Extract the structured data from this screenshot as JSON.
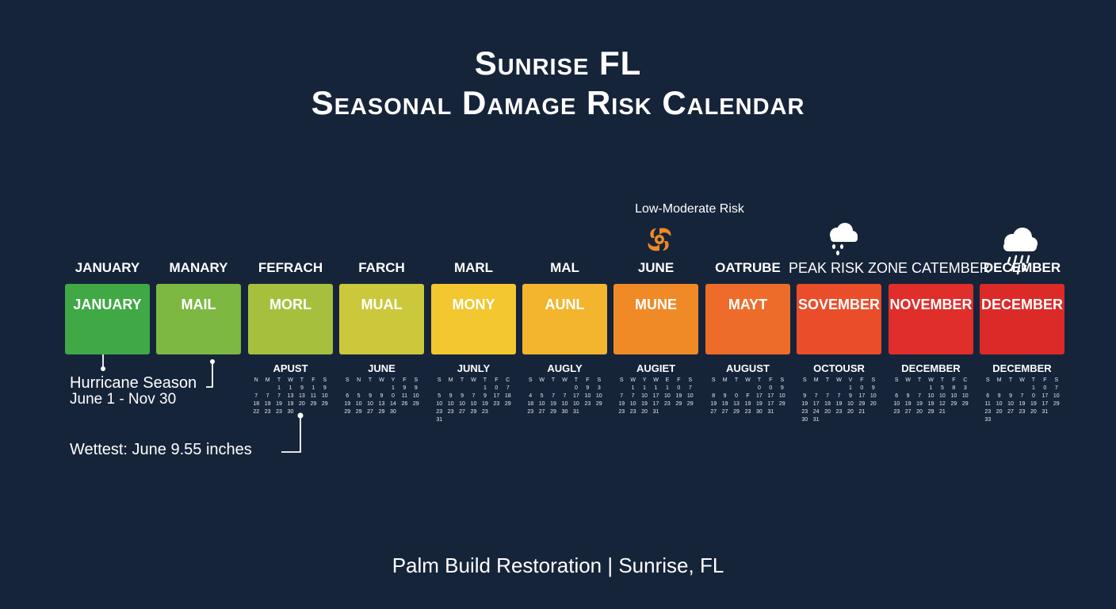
{
  "title": {
    "line1": "Sunrise FL",
    "line2": "Seasonal Damage Risk Calendar"
  },
  "colors": {
    "background": "#16243a",
    "hurricane_icon": "#ef8a26"
  },
  "risk_label": "Low-Moderate Risk",
  "icons": [
    "hurricane-icon",
    "cloud-rain-icon",
    "cloud-heavy-rain-icon"
  ],
  "months": [
    {
      "top": "JANUARY",
      "tile": "JANUARY",
      "color": "#40a845"
    },
    {
      "top": "MANARY",
      "tile": "MAIL",
      "color": "#7db843"
    },
    {
      "top": "FEFRACH",
      "tile": "MORL",
      "color": "#a6c03e"
    },
    {
      "top": "FARCH",
      "tile": "MUAL",
      "color": "#cbc83b"
    },
    {
      "top": "MARL",
      "tile": "MONY",
      "color": "#f2c72f"
    },
    {
      "top": "MAL",
      "tile": "AUNL",
      "color": "#f3b52e"
    },
    {
      "top": "JUNE",
      "tile": "MUNE",
      "color": "#ef8a26"
    },
    {
      "top": "OATRUBE",
      "tile": "MAYT",
      "color": "#ee6c29"
    },
    {
      "top": "PEAK RISK ZONE CATEMBER",
      "tile": "SOVEMBER",
      "color": "#ea4d2a"
    },
    {
      "top": "",
      "tile": "NOVEMBER",
      "color": "#e02e2b"
    },
    {
      "top": "DECEMBER",
      "tile": "DECEMBER",
      "color": "#dc2a29"
    }
  ],
  "calendars": [
    {
      "name": "APUST",
      "rows": [
        [
          "N",
          "M",
          "T",
          "W",
          "T",
          "F",
          "S"
        ],
        [
          "",
          "",
          "1",
          "1",
          "9",
          "1",
          "9"
        ],
        [
          "7",
          "7",
          "7",
          "13",
          "13",
          "11",
          "10"
        ],
        [
          "18",
          "19",
          "19",
          "19",
          "20",
          "29",
          "29"
        ],
        [
          "22",
          "23",
          "23",
          "30",
          "",
          "",
          ""
        ]
      ]
    },
    {
      "name": "JUNE",
      "rows": [
        [
          "S",
          "N",
          "T",
          "W",
          "Y",
          "F",
          "S"
        ],
        [
          "",
          "",
          "",
          "",
          "1",
          "9",
          "9"
        ],
        [
          "6",
          "5",
          "9",
          "9",
          "0",
          "11",
          "10"
        ],
        [
          "19",
          "10",
          "10",
          "13",
          "14",
          "26",
          "29"
        ],
        [
          "29",
          "29",
          "27",
          "29",
          "30",
          "",
          ""
        ]
      ]
    },
    {
      "name": "JUNLY",
      "rows": [
        [
          "S",
          "M",
          "T",
          "W",
          "T",
          "F",
          "C"
        ],
        [
          "",
          "",
          "",
          "",
          "1",
          "0",
          "7"
        ],
        [
          "5",
          "9",
          "9",
          "7",
          "9",
          "17",
          "18"
        ],
        [
          "10",
          "10",
          "10",
          "10",
          "19",
          "23",
          "29"
        ],
        [
          "23",
          "23",
          "27",
          "29",
          "23",
          "",
          ""
        ],
        [
          "31",
          "",
          "",
          "",
          "",
          "",
          ""
        ]
      ]
    },
    {
      "name": "AUGLY",
      "rows": [
        [
          "S",
          "W",
          "T",
          "W",
          "T",
          "F",
          "S"
        ],
        [
          "",
          "",
          "",
          "",
          "0",
          "9",
          "3"
        ],
        [
          "4",
          "5",
          "7",
          "7",
          "17",
          "10",
          "10"
        ],
        [
          "18",
          "10",
          "19",
          "10",
          "10",
          "23",
          "29"
        ],
        [
          "23",
          "27",
          "29",
          "30",
          "31",
          "",
          ""
        ]
      ]
    },
    {
      "name": "AUGIET",
      "rows": [
        [
          "S",
          "W",
          "Y",
          "W",
          "E",
          "F",
          "S"
        ],
        [
          "",
          "1",
          "1",
          "1",
          "1",
          "0",
          "7"
        ],
        [
          "7",
          "7",
          "10",
          "17",
          "10",
          "19",
          "10"
        ],
        [
          "19",
          "10",
          "19",
          "17",
          "23",
          "29",
          "29"
        ],
        [
          "23",
          "23",
          "20",
          "31",
          "",
          "",
          ""
        ]
      ]
    },
    {
      "name": "AUGUST",
      "rows": [
        [
          "S",
          "M",
          "T",
          "W",
          "T",
          "F",
          "S"
        ],
        [
          "",
          "",
          "",
          "",
          "0",
          "0",
          "9"
        ],
        [
          "8",
          "9",
          "0",
          "F",
          "17",
          "17",
          "10"
        ],
        [
          "19",
          "19",
          "13",
          "19",
          "19",
          "17",
          "29"
        ],
        [
          "27",
          "27",
          "29",
          "23",
          "30",
          "31",
          ""
        ]
      ]
    },
    {
      "name": "OCTOUSR",
      "rows": [
        [
          "S",
          "M",
          "T",
          "W",
          "V",
          "F",
          "S"
        ],
        [
          "",
          "",
          "",
          "",
          "1",
          "0",
          "9"
        ],
        [
          "9",
          "7",
          "7",
          "7",
          "9",
          "17",
          "10"
        ],
        [
          "19",
          "17",
          "19",
          "19",
          "10",
          "29",
          "20"
        ],
        [
          "23",
          "24",
          "20",
          "23",
          "20",
          "21",
          ""
        ],
        [
          "30",
          "31",
          "",
          "",
          "",
          "",
          ""
        ]
      ]
    },
    {
      "name": "DECEMBER",
      "rows": [
        [
          "S",
          "W",
          "T",
          "W",
          "T",
          "F",
          "C"
        ],
        [
          "",
          "",
          "",
          "1",
          "5",
          "8",
          "3"
        ],
        [
          "6",
          "9",
          "7",
          "10",
          "10",
          "10",
          "10"
        ],
        [
          "10",
          "19",
          "19",
          "19",
          "12",
          "29",
          "29"
        ],
        [
          "23",
          "27",
          "20",
          "29",
          "21",
          "",
          ""
        ]
      ]
    },
    {
      "name": "DECEMBER",
      "rows": [
        [
          "S",
          "M",
          "T",
          "W",
          "T",
          "F",
          "S"
        ],
        [
          "",
          "",
          "",
          "",
          "1",
          "0",
          "7"
        ],
        [
          "6",
          "9",
          "9",
          "7",
          "0",
          "17",
          "10"
        ],
        [
          "11",
          "10",
          "10",
          "19",
          "19",
          "17",
          "29"
        ],
        [
          "23",
          "20",
          "27",
          "23",
          "20",
          "31",
          ""
        ],
        [
          "33",
          "",
          "",
          "",
          "",
          "",
          ""
        ]
      ]
    }
  ],
  "annotations": {
    "hurricane_line1": "Hurricane Season",
    "hurricane_line2": "June 1 - Nov 30",
    "wettest": "Wettest: June 9.55 inches"
  },
  "footer": "Palm Build Restoration | Sunrise, FL"
}
